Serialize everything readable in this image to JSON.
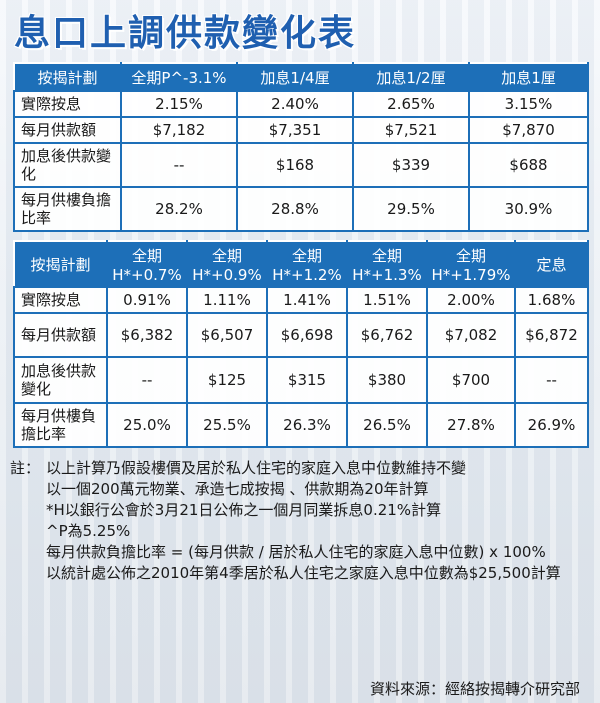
{
  "title": "息口上調供款變化表",
  "table1": {
    "header": [
      "按揭計劃",
      "全期P^-3.1%",
      "加息1/4厘",
      "加息1/2厘",
      "加息1厘"
    ],
    "rows": [
      {
        "label": "實際按息",
        "values": [
          "2.15%",
          "2.40%",
          "2.65%",
          "3.15%"
        ]
      },
      {
        "label": "每月供款額",
        "values": [
          "$7,182",
          "$7,351",
          "$7,521",
          "$7,870"
        ]
      },
      {
        "label": "加息後供款變化",
        "values": [
          "--",
          "$168",
          "$339",
          "$688"
        ]
      },
      {
        "label": "每月供樓負擔比率",
        "values": [
          "28.2%",
          "28.8%",
          "29.5%",
          "30.9%"
        ]
      }
    ]
  },
  "table2": {
    "header": [
      {
        "l1": "按揭計劃",
        "l2": ""
      },
      {
        "l1": "全期",
        "l2": "H*+0.7%"
      },
      {
        "l1": "全期",
        "l2": "H*+0.9%"
      },
      {
        "l1": "全期",
        "l2": "H*+1.2%"
      },
      {
        "l1": "全期",
        "l2": "H*+1.3%"
      },
      {
        "l1": "全期",
        "l2": "H*+1.79%"
      },
      {
        "l1": "定息",
        "l2": ""
      }
    ],
    "rows": [
      {
        "label": "實際按息",
        "values": [
          "0.91%",
          "1.11%",
          "1.41%",
          "1.51%",
          "2.00%",
          "1.68%"
        ]
      },
      {
        "label": "每月供款額",
        "values": [
          "$6,382",
          "$6,507",
          "$6,698",
          "$6,762",
          "$7,082",
          "$6,872"
        ]
      },
      {
        "label": "加息後供款變化",
        "values": [
          "--",
          "$125",
          "$315",
          "$380",
          "$700",
          "--"
        ]
      },
      {
        "label": "每月供樓負擔比率",
        "values": [
          "25.0%",
          "25.5%",
          "26.3%",
          "26.5%",
          "27.8%",
          "26.9%"
        ]
      }
    ]
  },
  "notes": {
    "lead": "註：",
    "lines": [
      "以上計算乃假設樓價及居於私人住宅的家庭入息中位數維持不變",
      "以一個200萬元物業、承造七成按揭 、供款期為20年計算",
      "*H以銀行公會於3月21日公佈之一個月同業拆息0.21%計算",
      "^P為5.25%",
      "每月供款負擔比率 = (每月供款 / 居於私人住宅的家庭入息中位數) x 100%",
      "以統計處公佈之2010年第4季居於私人住宅之家庭入息中位數為$25,500計算"
    ]
  },
  "source": "資料來源：經絡按揭轉介研究部",
  "colors": {
    "accent": "#1d6fb8",
    "title": "#1f5fb0"
  }
}
